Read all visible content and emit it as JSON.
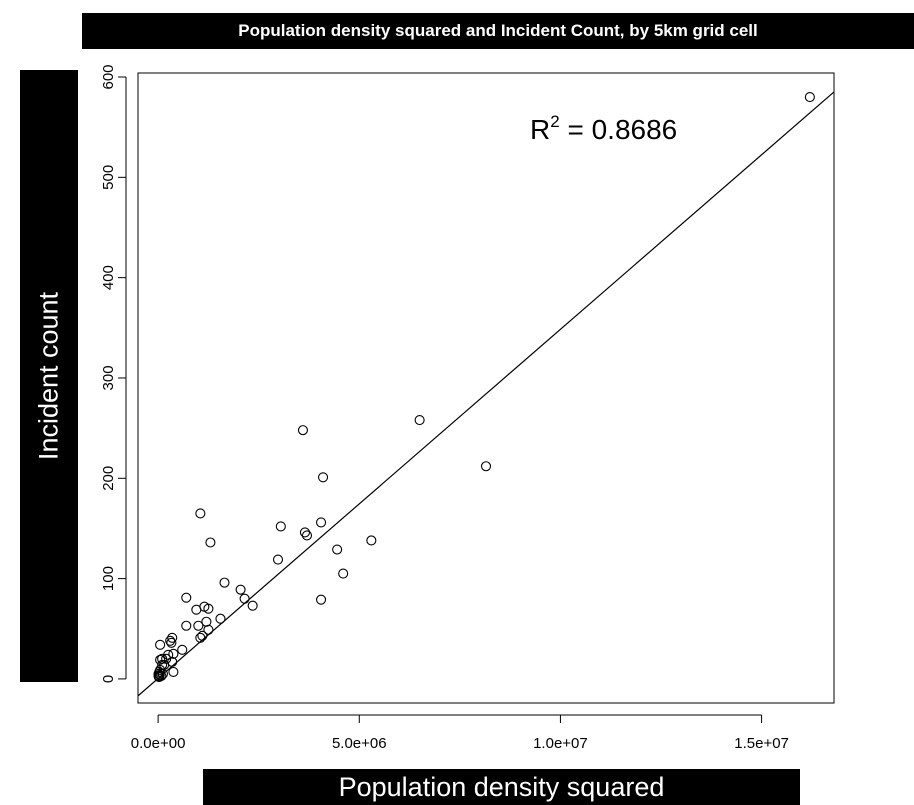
{
  "chart_data": {
    "type": "scatter",
    "title": "Population density squared and Incident Count, by 5km grid cell",
    "xlabel": "Population density squared",
    "ylabel": "Incident count",
    "xlim": [
      -500000,
      16800000
    ],
    "ylim": [
      -24,
      604
    ],
    "x_ticks": [
      0,
      5000000,
      10000000,
      15000000
    ],
    "x_tick_labels": [
      "0.0e+00",
      "5.0e+06",
      "1.0e+07",
      "1.5e+07"
    ],
    "y_ticks": [
      0,
      100,
      200,
      300,
      400,
      500,
      600
    ],
    "y_tick_labels": [
      "0",
      "100",
      "200",
      "300",
      "400",
      "500",
      "600"
    ],
    "annotation": {
      "base": "R",
      "sup": "2",
      "text": " = 0.8686"
    },
    "fit_line": {
      "slope": 3.48e-05,
      "intercept": 0.5
    },
    "series": [
      {
        "marker": "open-circle",
        "points": [
          [
            16200000,
            580
          ],
          [
            6500000,
            258
          ],
          [
            8150000,
            212
          ],
          [
            3600000,
            248
          ],
          [
            4100000,
            201
          ],
          [
            5300000,
            138
          ],
          [
            4450000,
            129
          ],
          [
            4600000,
            105
          ],
          [
            4050000,
            79
          ],
          [
            4050000,
            156
          ],
          [
            3650000,
            146
          ],
          [
            3700000,
            143
          ],
          [
            3050000,
            152
          ],
          [
            2980000,
            119
          ],
          [
            1050000,
            165
          ],
          [
            1300000,
            136
          ],
          [
            1650000,
            96
          ],
          [
            2050000,
            89
          ],
          [
            2150000,
            80
          ],
          [
            2350000,
            73
          ],
          [
            1550000,
            60
          ],
          [
            1250000,
            70
          ],
          [
            1150000,
            72
          ],
          [
            950000,
            69
          ],
          [
            700000,
            81
          ],
          [
            700000,
            53
          ],
          [
            1000000,
            53
          ],
          [
            1200000,
            57
          ],
          [
            1250000,
            49
          ],
          [
            1050000,
            41
          ],
          [
            1100000,
            43
          ],
          [
            350000,
            41
          ],
          [
            300000,
            38
          ],
          [
            330000,
            36
          ],
          [
            600000,
            29
          ],
          [
            380000,
            25
          ],
          [
            250000,
            24
          ],
          [
            350000,
            17
          ],
          [
            200000,
            20
          ],
          [
            100000,
            20
          ],
          [
            50000,
            34
          ],
          [
            50000,
            19
          ],
          [
            100000,
            14
          ],
          [
            150000,
            14
          ],
          [
            380000,
            7
          ],
          [
            50000,
            9
          ],
          [
            30000,
            7
          ],
          [
            10000,
            5
          ],
          [
            10000,
            3
          ],
          [
            30000,
            2
          ],
          [
            20000,
            2
          ],
          [
            40000,
            4
          ],
          [
            80000,
            3
          ],
          [
            120000,
            5
          ]
        ]
      }
    ]
  }
}
